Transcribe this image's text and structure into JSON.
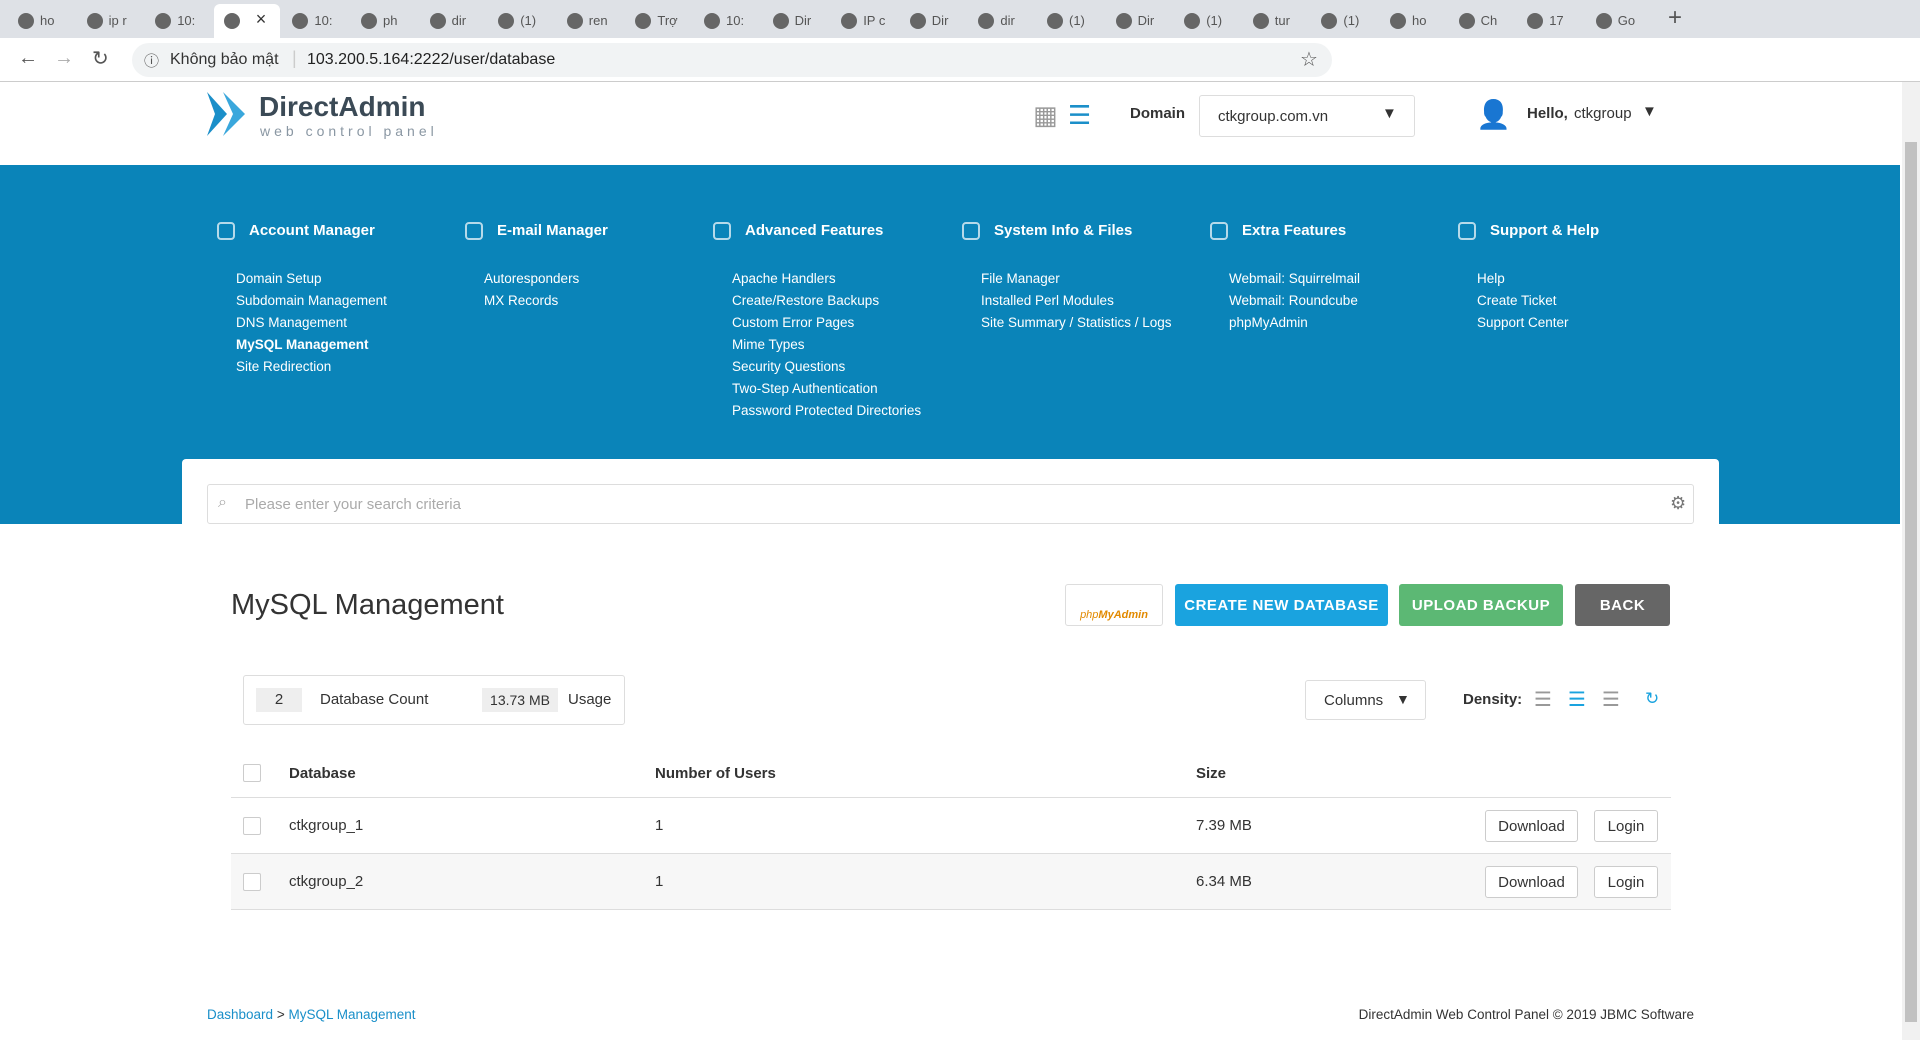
{
  "browser": {
    "tabs": [
      "ho",
      "ip r",
      "10:",
      null,
      "10:",
      "ph",
      "dir",
      "(1)",
      "ren",
      "Trợ",
      "10:",
      "Dir",
      "IP c",
      "Dir",
      "dir",
      "(1)",
      "Dir",
      "(1)",
      "tur",
      "(1)",
      "ho",
      "Ch",
      "17",
      "Go"
    ],
    "security": "Không bảo mật",
    "url": "103.200.5.164:2222/user/database"
  },
  "header": {
    "logo": "DirectAdmin",
    "tagline": "web control panel",
    "domain_label": "Domain",
    "domain": "ctkgroup.com.vn",
    "hello": "Hello,",
    "user": "ctkgroup"
  },
  "nav": [
    {
      "title": "Account Manager",
      "items": [
        "Domain Setup",
        "Subdomain Management",
        "DNS Management",
        "MySQL Management",
        "Site Redirection"
      ]
    },
    {
      "title": "E-mail Manager",
      "items": [
        "Autoresponders",
        "MX Records"
      ]
    },
    {
      "title": "Advanced Features",
      "items": [
        "Apache Handlers",
        "Create/Restore Backups",
        "Custom Error Pages",
        "Mime Types",
        "Security Questions",
        "Two-Step Authentication",
        "Password Protected Directories"
      ]
    },
    {
      "title": "System Info & Files",
      "items": [
        "File Manager",
        "Installed Perl Modules",
        "Site Summary / Statistics / Logs"
      ]
    },
    {
      "title": "Extra Features",
      "items": [
        "Webmail: Squirrelmail",
        "Webmail: Roundcube",
        "phpMyAdmin"
      ]
    },
    {
      "title": "Support & Help",
      "items": [
        "Help",
        "Create Ticket",
        "Support Center"
      ]
    }
  ],
  "search_placeholder": "Please enter your search criteria",
  "page": {
    "title": "MySQL Management",
    "buttons": [
      "CREATE NEW DATABASE",
      "UPLOAD BACKUP",
      "BACK"
    ],
    "stats": {
      "count": "2",
      "count_label": "Database Count",
      "usage": "13.73 MB",
      "usage_label": "Usage"
    },
    "columns": "Columns",
    "density": "Density:"
  },
  "table": {
    "headers": [
      "Database",
      "Number of Users",
      "Size"
    ],
    "rows": [
      [
        "ctkgroup_1",
        "1",
        "7.39 MB"
      ],
      [
        "ctkgroup_2",
        "1",
        "6.34 MB"
      ]
    ],
    "actions": [
      "Download",
      "Login"
    ]
  },
  "footer": {
    "breadcrumb": [
      "Dashboard",
      "MySQL Management"
    ],
    "separator": ">",
    "copyright": "DirectAdmin Web Control Panel © 2019 JBMC Software"
  }
}
